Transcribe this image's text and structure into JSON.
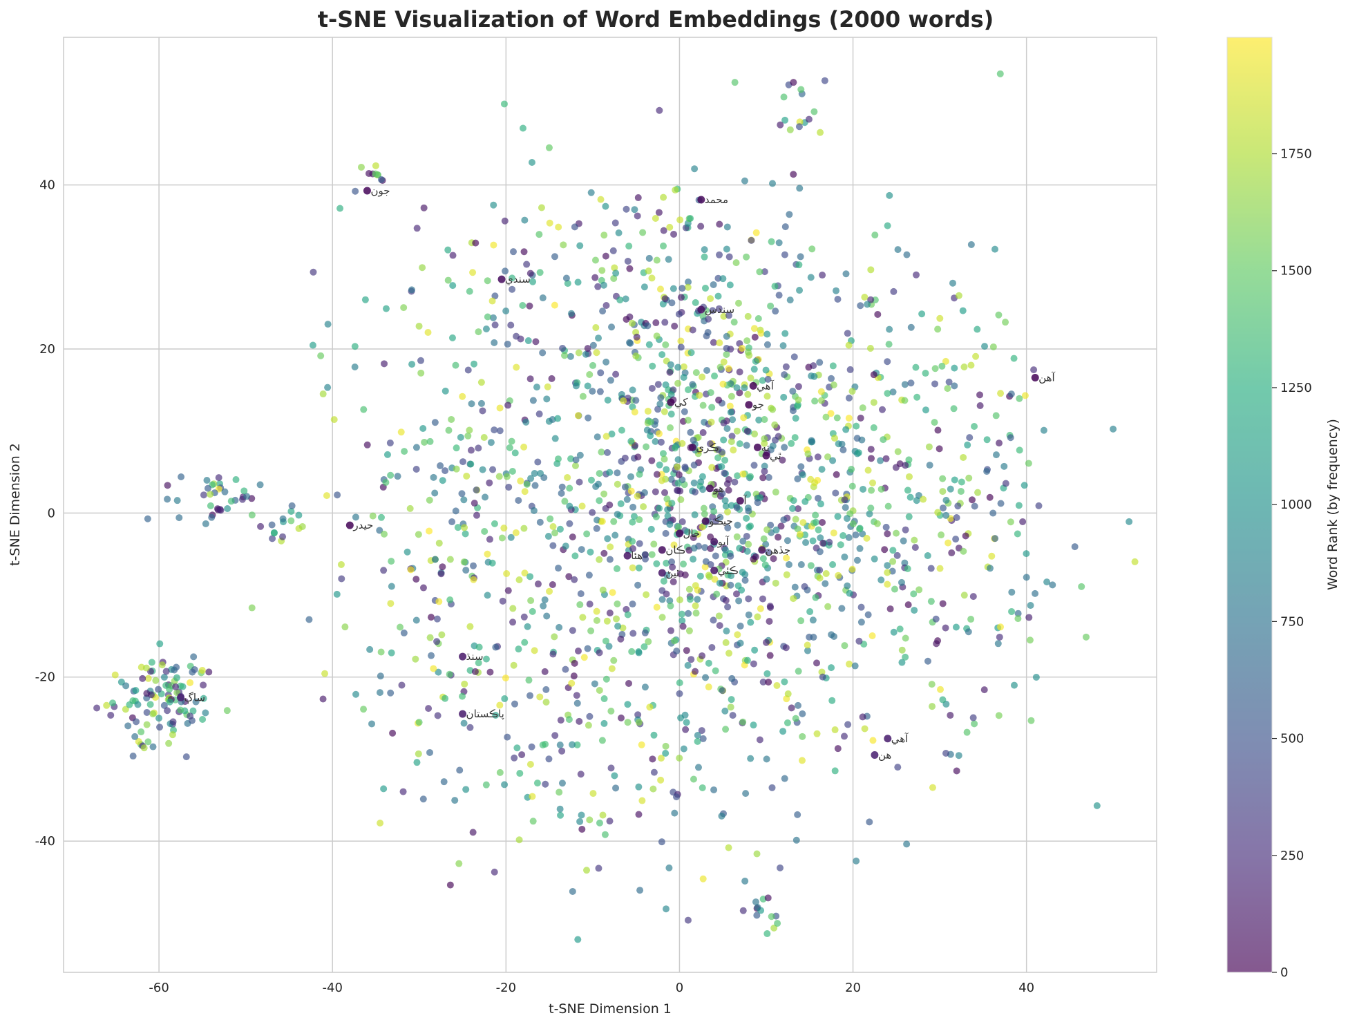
{
  "chart_data": {
    "type": "scatter",
    "title": "t-SNE Visualization of Word Embeddings (2000 words)",
    "xlabel": "t-SNE Dimension 1",
    "ylabel": "t-SNE Dimension 2",
    "xlim": [
      -71,
      55
    ],
    "ylim": [
      -56,
      58
    ],
    "xticks": [
      -60,
      -40,
      -20,
      0,
      20,
      40
    ],
    "yticks": [
      -40,
      -20,
      0,
      20,
      40
    ],
    "grid": true,
    "colormap": "viridis",
    "point_alpha": 0.65,
    "colorbar": {
      "label": "Word Rank (by frequency)",
      "range": [
        0,
        1999
      ],
      "ticks": [
        0,
        250,
        500,
        750,
        1000,
        1250,
        1500,
        1750
      ]
    },
    "point_count": 2000,
    "clusters": [
      {
        "center": [
          3,
          2
        ],
        "spread": [
          13,
          16
        ],
        "count": 1180
      },
      {
        "center": [
          -60,
          -23
        ],
        "spread": [
          3,
          2.6
        ],
        "count": 110
      },
      {
        "center": [
          -53,
          2
        ],
        "spread": [
          2.5,
          1.8
        ],
        "count": 38
      },
      {
        "center": [
          -46,
          -2
        ],
        "spread": [
          1.2,
          1.2
        ],
        "count": 14
      },
      {
        "center": [
          -35,
          41
        ],
        "spread": [
          1,
          1
        ],
        "count": 10
      },
      {
        "center": [
          13,
          50
        ],
        "spread": [
          1.5,
          2
        ],
        "count": 14
      },
      {
        "center": [
          10,
          -49
        ],
        "spread": [
          1.5,
          1.5
        ],
        "count": 14
      },
      {
        "center": [
          -27,
          2
        ],
        "spread": [
          8,
          14
        ],
        "count": 180
      },
      {
        "center": [
          30,
          0
        ],
        "spread": [
          8,
          14
        ],
        "count": 200
      },
      {
        "center": [
          -10,
          30
        ],
        "spread": [
          12,
          8
        ],
        "count": 120
      },
      {
        "center": [
          -15,
          -28
        ],
        "spread": [
          10,
          8
        ],
        "count": 110
      }
    ],
    "highlighted_words": [
      {
        "word": "جون",
        "x": -36,
        "y": 39.3,
        "rank": 30
      },
      {
        "word": "محمد",
        "x": 2.5,
        "y": 38.2,
        "rank": 40
      },
      {
        "word": "سندي",
        "x": -20.5,
        "y": 28.5,
        "rank": 60
      },
      {
        "word": "سندس",
        "x": 2.5,
        "y": 24.8,
        "rank": 90
      },
      {
        "word": "آهن",
        "x": 41,
        "y": 16.5,
        "rank": 10
      },
      {
        "word": "آهي",
        "x": 8.5,
        "y": 15.5,
        "rank": 5
      },
      {
        "word": "جو",
        "x": 8,
        "y": 13.2,
        "rank": 8
      },
      {
        "word": "کي",
        "x": -1,
        "y": 13.5,
        "rank": 12
      },
      {
        "word": "ڪري",
        "x": 1.5,
        "y": 8,
        "rank": 50
      },
      {
        "word": "ته",
        "x": 9,
        "y": 8,
        "rank": 25
      },
      {
        "word": "ٿي",
        "x": 10,
        "y": 7,
        "rank": 35
      },
      {
        "word": "هو",
        "x": 3.5,
        "y": 3,
        "rank": 45
      },
      {
        "word": "آ",
        "x": 7,
        "y": 1.5,
        "rank": 15
      },
      {
        "word": "جيڪو",
        "x": 3,
        "y": -1,
        "rank": 55
      },
      {
        "word": "حال",
        "x": 0,
        "y": -2.5,
        "rank": 70
      },
      {
        "word": "جڏهن",
        "x": 9.5,
        "y": -4.5,
        "rank": 80
      },
      {
        "word": "ڪان",
        "x": -2,
        "y": -4.5,
        "rank": 65
      },
      {
        "word": "آيو",
        "x": 4,
        "y": -3.5,
        "rank": 95
      },
      {
        "word": "هئا",
        "x": -6,
        "y": -5.2,
        "rank": 100
      },
      {
        "word": "ڪئي",
        "x": 4,
        "y": -7,
        "rank": 110
      },
      {
        "word": "ٿيڻ",
        "x": -2,
        "y": -7.3,
        "rank": 120
      },
      {
        "word": "حيدر",
        "x": -38,
        "y": -1.5,
        "rank": 20
      },
      {
        "word": "سنڌ",
        "x": -25,
        "y": -17.5,
        "rank": 130
      },
      {
        "word": "پاڪستان",
        "x": -25,
        "y": -24.5,
        "rank": 140
      },
      {
        "word": "آهي",
        "x": 24,
        "y": -27.5,
        "rank": 150
      },
      {
        "word": "هن",
        "x": 22.5,
        "y": -29.5,
        "rank": 160
      },
      {
        "word": "ساڳ",
        "x": -57.5,
        "y": -22.5,
        "rank": 170
      }
    ]
  }
}
